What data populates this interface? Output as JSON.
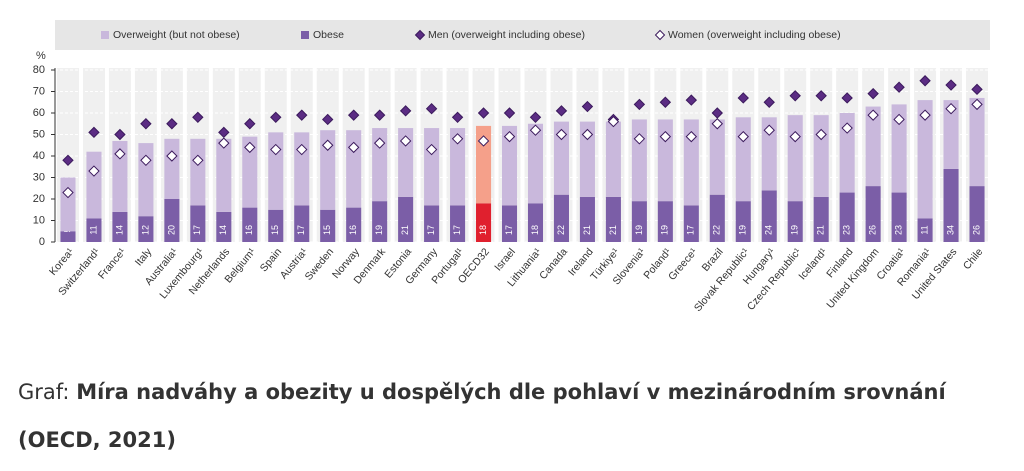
{
  "chart_data": {
    "type": "stacked-bar",
    "y_unit": "%",
    "categories": [
      "Korea¹",
      "Switzerland¹",
      "France¹",
      "Italy",
      "Australia¹",
      "Luxembourg¹",
      "Netherlands",
      "Belgium¹",
      "Spain",
      "Austria¹",
      "Sweden",
      "Norway",
      "Denmark",
      "Estonia",
      "Germany",
      "Portugal¹",
      "OECD32",
      "Israel",
      "Lithuania¹",
      "Canada",
      "Ireland",
      "Türkiye¹",
      "Slovenia¹",
      "Poland¹",
      "Greece¹",
      "Brazil",
      "Slovak Republic¹",
      "Hungary¹",
      "Czech Republic¹",
      "Iceland¹",
      "Finland",
      "United Kingdom",
      "Croatia¹",
      "Romania¹",
      "United States",
      "Chile"
    ],
    "series": [
      {
        "name": "Overweight (but not obese)",
        "kind": "bar",
        "color": "#c9b8dc",
        "highlight_color": "#f5a08a",
        "values": [
          25,
          31,
          33,
          34,
          28,
          31,
          34,
          33,
          36,
          34,
          37,
          36,
          34,
          32,
          36,
          36,
          36,
          37,
          37,
          34,
          35,
          35,
          38,
          38,
          40,
          35,
          39,
          34,
          40,
          38,
          37,
          37,
          41,
          55,
          32,
          41
        ]
      },
      {
        "name": "Obese",
        "kind": "bar",
        "color": "#7b5ea7",
        "highlight_color": "#e0202e",
        "values": [
          5,
          11,
          14,
          12,
          20,
          17,
          14,
          16,
          15,
          17,
          15,
          16,
          19,
          21,
          17,
          17,
          18,
          17,
          18,
          22,
          21,
          21,
          19,
          19,
          17,
          22,
          19,
          24,
          19,
          21,
          23,
          26,
          23,
          11,
          34,
          26
        ]
      },
      {
        "name": "Men (overweight including obese)",
        "kind": "marker",
        "color": "#5b2c83",
        "values": [
          38,
          51,
          50,
          55,
          55,
          58,
          51,
          55,
          58,
          59,
          57,
          59,
          59,
          61,
          62,
          58,
          60,
          60,
          58,
          61,
          63,
          57,
          64,
          65,
          66,
          60,
          67,
          65,
          68,
          68,
          67,
          69,
          72,
          75,
          73,
          71
        ]
      },
      {
        "name": "Women (overweight including obese)",
        "kind": "marker",
        "color": "#ffffff",
        "values": [
          23,
          33,
          41,
          38,
          40,
          38,
          46,
          44,
          43,
          43,
          45,
          44,
          46,
          47,
          43,
          48,
          47,
          49,
          52,
          50,
          50,
          56,
          48,
          49,
          49,
          55,
          49,
          52,
          49,
          50,
          53,
          59,
          57,
          59,
          62,
          64
        ]
      }
    ],
    "highlight_index": 16,
    "ylim": [
      0,
      80
    ],
    "yticks": [
      0,
      10,
      20,
      30,
      40,
      50,
      60,
      70,
      80
    ],
    "grid": true
  },
  "caption": {
    "prefix": "Graf:",
    "text": "Míra nadváhy a obezity u dospělých dle pohlaví v mezinárodním srovnání (OECD, 2021)"
  }
}
